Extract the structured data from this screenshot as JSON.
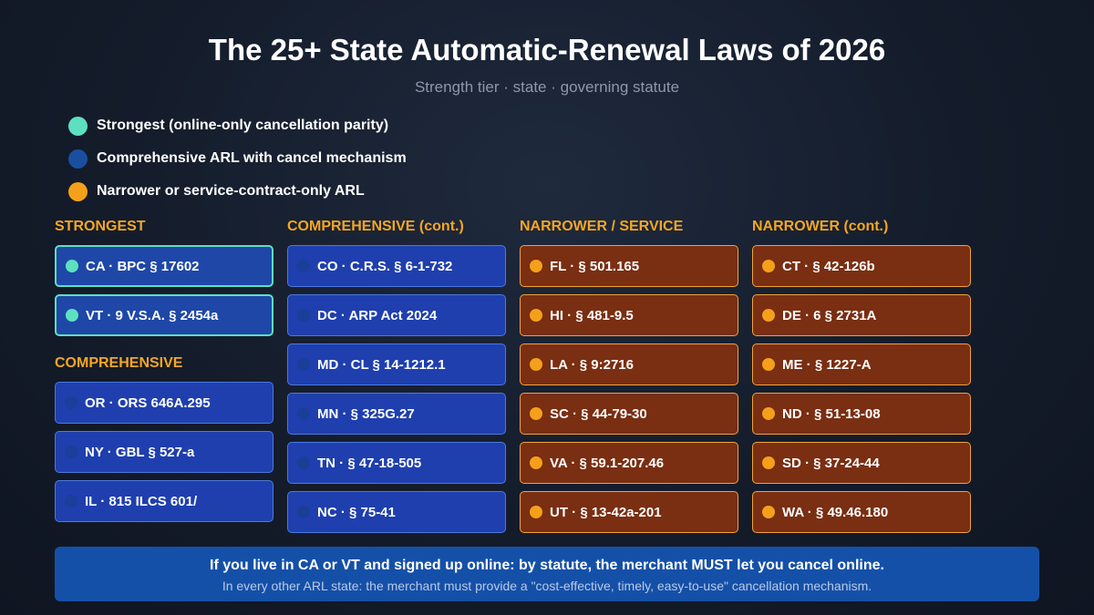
{
  "title": "The 25+ State Automatic-Renewal Laws of 2026",
  "subtitle": "Strength tier · state · governing statute",
  "colors": {
    "strongest": "#5de0bf",
    "comprehensive": "#1a4fa0",
    "narrower": "#f5a01a"
  },
  "legend": [
    {
      "label": "Strongest (online-only cancellation parity)"
    },
    {
      "label": "Comprehensive ARL with cancel mechanism"
    },
    {
      "label": "Narrower or service-contract-only ARL"
    }
  ],
  "columns": {
    "strongest_head": "STRONGEST",
    "comprehensive_head": "COMPREHENSIVE",
    "comprehensive_cont_head": "COMPREHENSIVE (cont.)",
    "narrower_head": "NARROWER / SERVICE",
    "narrower_cont_head": "NARROWER (cont.)"
  },
  "strongest": [
    "CA · BPC § 17602",
    "VT · 9 V.S.A. § 2454a"
  ],
  "comprehensive": [
    "OR · ORS 646A.295",
    "NY · GBL § 527-a",
    "IL · 815 ILCS 601/"
  ],
  "comprehensive_cont": [
    "CO · C.R.S. § 6-1-732",
    "DC · ARP Act 2024",
    "MD · CL § 14-1212.1",
    "MN · § 325G.27",
    "TN · § 47-18-505",
    "NC · § 75-41"
  ],
  "narrower": [
    "FL · § 501.165",
    "HI · § 481-9.5",
    "LA · § 9:2716",
    "SC · § 44-79-30",
    "VA · § 59.1-207.46",
    "UT · § 13-42a-201"
  ],
  "narrower_cont": [
    "CT · § 42-126b",
    "DE · 6 § 2731A",
    "ME · § 1227-A",
    "ND · § 51-13-08",
    "SD · § 37-24-44",
    "WA · § 49.46.180"
  ],
  "banner": {
    "main": "If you live in CA or VT and signed up online: by statute, the merchant MUST let you cancel online.",
    "sub": "In every other ARL state: the merchant must provide a \"cost-effective, timely, easy-to-use\" cancellation mechanism."
  }
}
